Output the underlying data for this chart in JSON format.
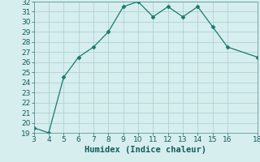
{
  "x": [
    3,
    4,
    5,
    6,
    7,
    8,
    9,
    10,
    11,
    12,
    13,
    14,
    15,
    16,
    18
  ],
  "y": [
    19.5,
    19.0,
    24.5,
    26.5,
    27.5,
    29.0,
    31.5,
    32.0,
    30.5,
    31.5,
    30.5,
    31.5,
    29.5,
    27.5,
    26.5
  ],
  "xlabel": "Humidex (Indice chaleur)",
  "xlim": [
    3,
    18
  ],
  "ylim": [
    19,
    32
  ],
  "xticks": [
    3,
    4,
    5,
    6,
    7,
    8,
    9,
    10,
    11,
    12,
    13,
    14,
    15,
    16,
    18
  ],
  "yticks": [
    19,
    20,
    21,
    22,
    23,
    24,
    25,
    26,
    27,
    28,
    29,
    30,
    31,
    32
  ],
  "line_color": "#1a7a6e",
  "marker": "D",
  "marker_size": 2.5,
  "bg_color": "#d6eeee",
  "grid_color": "#aacccc",
  "xlabel_fontsize": 7.5,
  "tick_fontsize": 6.5
}
